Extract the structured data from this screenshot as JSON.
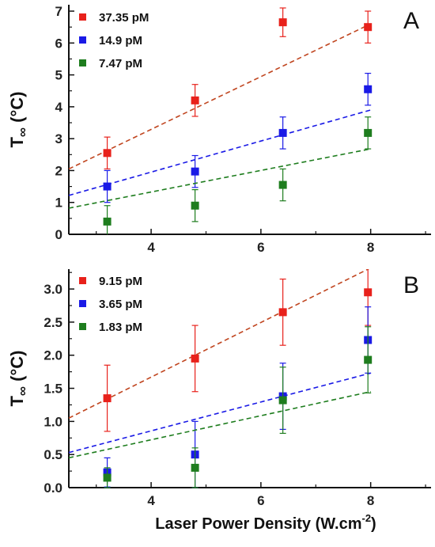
{
  "chart_data": [
    {
      "type": "scatter",
      "panel_label": "A",
      "ylabel_main": "T",
      "ylabel_sub": "∞",
      "ylabel_unit": " (°C)",
      "xlim": [
        2.5,
        9.1
      ],
      "ylim": [
        0,
        7.2
      ],
      "x_ticks": [
        "4",
        "6",
        "8"
      ],
      "y_ticks": [
        "0",
        "1",
        "2",
        "3",
        "4",
        "5",
        "6",
        "7"
      ],
      "legend_position": "top-left",
      "series": [
        {
          "name": "37.35 pM",
          "color": "#e8211b",
          "fit_color": "#c0451f",
          "x": [
            3.2,
            4.8,
            6.4,
            7.95
          ],
          "y": [
            2.55,
            4.2,
            6.65,
            6.5
          ],
          "err": [
            0.5,
            0.5,
            0.45,
            0.5
          ],
          "fit": [
            [
              2.5,
              2.05
            ],
            [
              8.0,
              6.6
            ]
          ]
        },
        {
          "name": "14.9 pM",
          "color": "#1a1ae6",
          "fit_color": "#1a1ae6",
          "x": [
            3.2,
            4.8,
            6.4,
            7.95
          ],
          "y": [
            1.5,
            1.97,
            3.18,
            4.55
          ],
          "err": [
            0.5,
            0.5,
            0.5,
            0.5
          ],
          "fit": [
            [
              2.5,
              1.22
            ],
            [
              8.0,
              3.9
            ]
          ]
        },
        {
          "name": "7.47 pM",
          "color": "#1e7d1e",
          "fit_color": "#1e7d1e",
          "x": [
            3.2,
            4.8,
            6.4,
            7.95
          ],
          "y": [
            0.4,
            0.9,
            1.55,
            3.18
          ],
          "err": [
            0.5,
            0.5,
            0.5,
            0.5
          ],
          "fit": [
            [
              2.5,
              0.82
            ],
            [
              8.0,
              2.68
            ]
          ]
        }
      ]
    },
    {
      "type": "scatter",
      "panel_label": "B",
      "ylabel_main": "T",
      "ylabel_sub": "∞",
      "ylabel_unit": " (°C)",
      "xlabel_main": "Laser Power  Density (W.cm",
      "xlabel_sup": "-2",
      "xlabel_end": ")",
      "xlim": [
        2.5,
        9.1
      ],
      "ylim": [
        0,
        3.3
      ],
      "x_ticks": [
        "4",
        "6",
        "8"
      ],
      "y_ticks": [
        "0.0",
        "0.5",
        "1.0",
        "1.5",
        "2.0",
        "2.5",
        "3.0"
      ],
      "legend_position": "top-left",
      "series": [
        {
          "name": "9.15 pM",
          "color": "#e8211b",
          "fit_color": "#c0451f",
          "x": [
            3.2,
            4.8,
            6.4,
            7.95
          ],
          "y": [
            1.35,
            1.95,
            2.65,
            2.95
          ],
          "err": [
            0.5,
            0.5,
            0.5,
            0.5
          ],
          "fit": [
            [
              2.5,
              1.05
            ],
            [
              8.0,
              3.32
            ]
          ]
        },
        {
          "name": "3.65 pM",
          "color": "#1a1ae6",
          "fit_color": "#1a1ae6",
          "x": [
            3.2,
            4.8,
            6.4,
            7.95
          ],
          "y": [
            0.23,
            0.5,
            1.38,
            2.23
          ],
          "err": [
            0.22,
            0.5,
            0.5,
            0.5
          ],
          "fit": [
            [
              2.5,
              0.53
            ],
            [
              8.0,
              1.73
            ]
          ]
        },
        {
          "name": "1.83 pM",
          "color": "#1e7d1e",
          "fit_color": "#1e7d1e",
          "x": [
            3.2,
            4.8,
            6.4,
            7.95
          ],
          "y": [
            0.15,
            0.3,
            1.32,
            1.93
          ],
          "err": [
            0.15,
            0.3,
            0.5,
            0.5
          ],
          "fit": [
            [
              2.5,
              0.45
            ],
            [
              8.0,
              1.45
            ]
          ]
        }
      ]
    }
  ]
}
